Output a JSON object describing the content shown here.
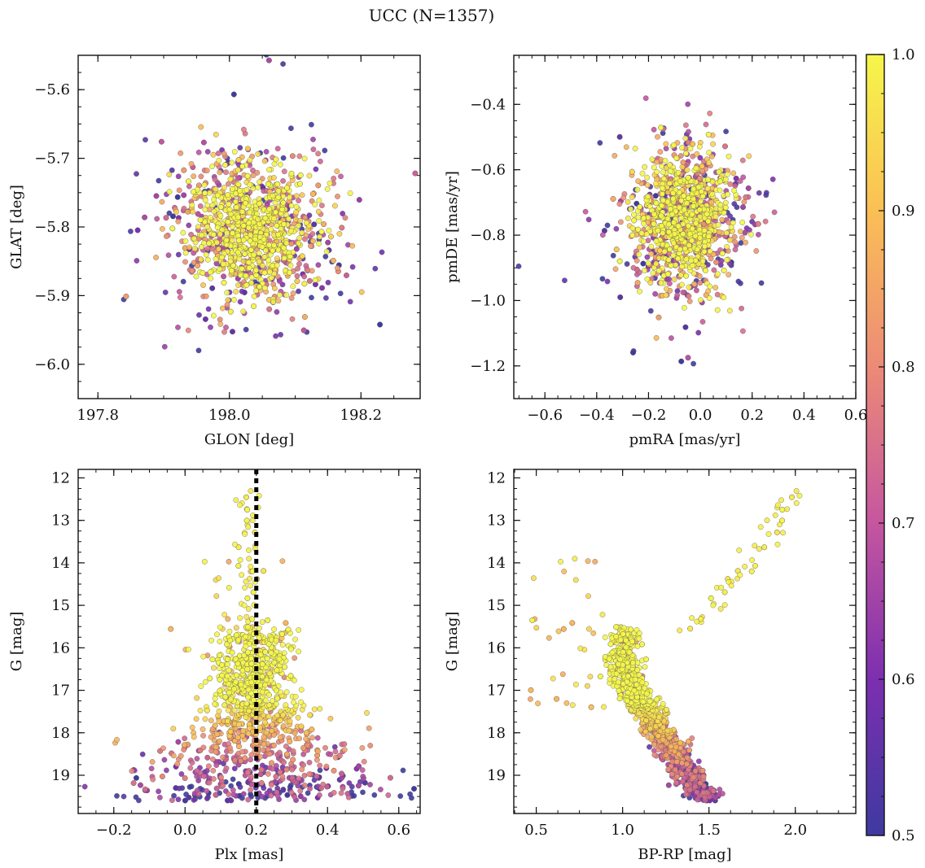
{
  "figure_title": "UCC (N=1357)",
  "colorbar": {
    "min": 0.5,
    "max": 1.0,
    "tick_labels": [
      "0.5",
      "0.6",
      "0.7",
      "0.8",
      "0.9",
      "1.0"
    ],
    "ticks": [
      0.5,
      0.6,
      0.7,
      0.8,
      0.9,
      1.0
    ],
    "colormap": [
      "#3e3aa0",
      "#7c2fb0",
      "#c5569f",
      "#ec8a77",
      "#fbbf55",
      "#f5f64a"
    ]
  },
  "chart_data": [
    {
      "type": "scatter",
      "id": "sky",
      "xlabel": "GLON [deg]",
      "ylabel": "GLAT [deg]",
      "xlim": [
        197.77,
        198.29
      ],
      "ylim": [
        -6.05,
        -5.55
      ],
      "invert_y": false,
      "xticks": [
        197.8,
        198.0,
        198.2
      ],
      "xtick_labels": [
        "197.8",
        "198.0",
        "198.2"
      ],
      "yticks": [
        -5.6,
        -5.7,
        -5.8,
        -5.9,
        -6.0
      ],
      "ytick_labels": [
        "−5.6",
        "−5.7",
        "−5.8",
        "−5.9",
        "−6.0"
      ],
      "cloud": {
        "x_center": 198.035,
        "x_spread": 0.045,
        "y_center": -5.805,
        "y_spread": 0.045,
        "halo_x_spread": 0.09,
        "halo_y_spread": 0.085
      },
      "vline": null
    },
    {
      "type": "scatter",
      "id": "pm",
      "xlabel": "pmRA [mas/yr]",
      "ylabel": "pmDE [mas/yr]",
      "xlim": [
        -0.72,
        0.6
      ],
      "ylim": [
        -1.3,
        -0.25
      ],
      "invert_y": false,
      "xticks": [
        -0.6,
        -0.4,
        -0.2,
        0.0,
        0.2,
        0.4,
        0.6
      ],
      "xtick_labels": [
        "−0.6",
        "−0.4",
        "−0.2",
        "0.0",
        "0.2",
        "0.4",
        "0.6"
      ],
      "yticks": [
        -0.4,
        -0.6,
        -0.8,
        -1.0,
        -1.2
      ],
      "ytick_labels": [
        "−0.4",
        "−0.6",
        "−0.8",
        "−1.0",
        "−1.2"
      ],
      "cloud": {
        "x_center": -0.06,
        "x_spread": 0.09,
        "y_center": -0.76,
        "y_spread": 0.09,
        "halo_x_spread": 0.2,
        "halo_y_spread": 0.17
      },
      "vline": null
    },
    {
      "type": "scatter",
      "id": "plx",
      "xlabel": "Plx [mas]",
      "ylabel": "G [mag]",
      "xlim": [
        -0.3,
        0.66
      ],
      "ylim": [
        19.9,
        11.8
      ],
      "invert_y": true,
      "xticks": [
        -0.2,
        0.0,
        0.2,
        0.4,
        0.6
      ],
      "xtick_labels": [
        "−0.2",
        "0.0",
        "0.2",
        "0.4",
        "0.6"
      ],
      "yticks": [
        12,
        13,
        14,
        15,
        16,
        17,
        18,
        19
      ],
      "ytick_labels": [
        "12",
        "13",
        "14",
        "15",
        "16",
        "17",
        "18",
        "19"
      ],
      "vline": {
        "x": 0.2,
        "style": "dotted"
      }
    },
    {
      "type": "scatter",
      "id": "cmd",
      "xlabel": "BP-RP [mag]",
      "ylabel": "G [mag]",
      "xlim": [
        0.37,
        2.35
      ],
      "ylim": [
        19.9,
        11.8
      ],
      "invert_y": true,
      "xticks": [
        0.5,
        1.0,
        1.5,
        2.0
      ],
      "xtick_labels": [
        "0.5",
        "1.0",
        "1.5",
        "2.0"
      ],
      "yticks": [
        12,
        13,
        14,
        15,
        16,
        17,
        18,
        19
      ],
      "ytick_labels": [
        "12",
        "13",
        "14",
        "15",
        "16",
        "17",
        "18",
        "19"
      ],
      "vline": null
    }
  ]
}
